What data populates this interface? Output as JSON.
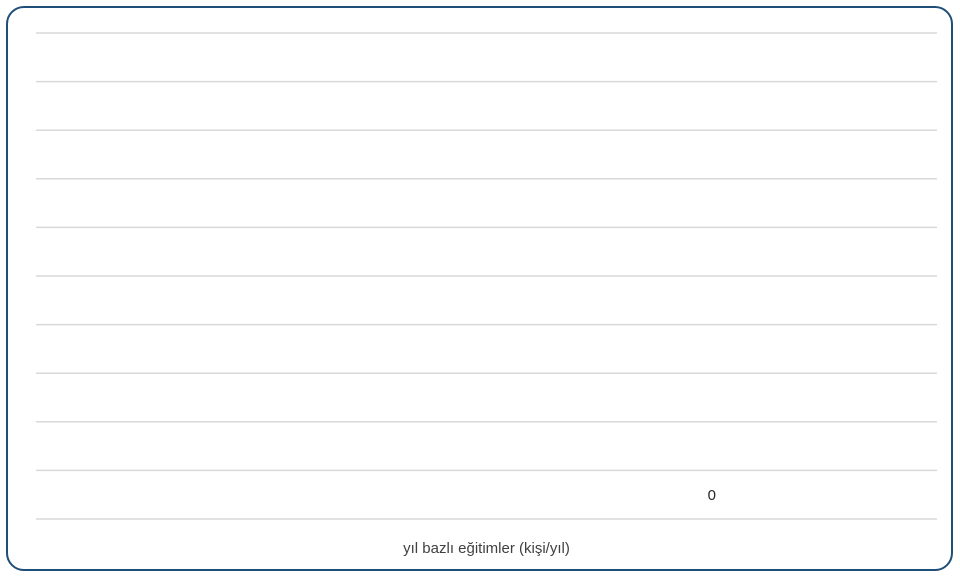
{
  "chart_data": {
    "type": "bar",
    "title": "",
    "xlabel": "",
    "ylabel": "",
    "categories": [
      "yıl bazlı eğitimler (kişi/yıl)"
    ],
    "series": [
      {
        "values": [
          0
        ],
        "data_labels": [
          "0"
        ]
      }
    ],
    "ylim": [
      0,
      10
    ],
    "grid": true,
    "legend": "none",
    "colors": {
      "border": "#1f4e79",
      "grid": "#d9d9d9",
      "text": "#262626"
    }
  }
}
